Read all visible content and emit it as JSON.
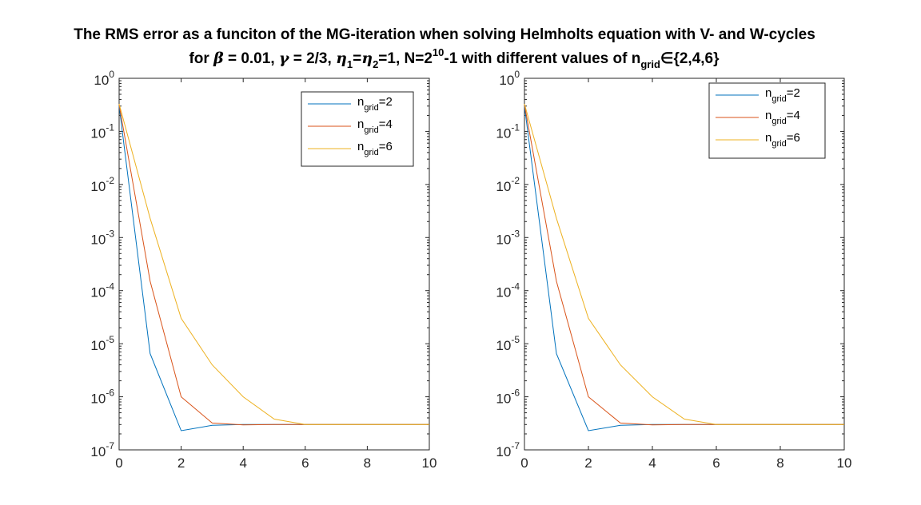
{
  "chart_data": {
    "title_line1": "The RMS error as a funciton of the MG-iteration when solving Helmholts equation with V- and W-cycles",
    "title_line2": {
      "p1": "for ",
      "beta": "β",
      "p2": " = 0.01, ",
      "gamma": "γ",
      "p3": " = 2/3, ",
      "eta": "η",
      "sub1": "1",
      "p4": "=",
      "sub2": "2",
      "p5": "=1, N=2",
      "sup": "10",
      "p6": "-1 with different values of n",
      "subgrid": "grid",
      "p7": "∈{2,4,6}"
    },
    "colors": [
      "#0072BD",
      "#D95319",
      "#EDB120"
    ],
    "panels": [
      {
        "type": "line",
        "yscale": "log",
        "xlim": [
          0,
          10
        ],
        "ylim_exp": [
          -7,
          0
        ],
        "xticks": [
          0,
          2,
          4,
          6,
          8,
          10
        ],
        "yticks": [
          {
            "base": "10",
            "exp": "0"
          },
          {
            "base": "10",
            "exp": "-1"
          },
          {
            "base": "10",
            "exp": "-2"
          },
          {
            "base": "10",
            "exp": "-3"
          },
          {
            "base": "10",
            "exp": "-4"
          },
          {
            "base": "10",
            "exp": "-5"
          },
          {
            "base": "10",
            "exp": "-6"
          },
          {
            "base": "10",
            "exp": "-7"
          }
        ],
        "legend": "top-right",
        "series": [
          {
            "label": {
              "n": "n",
              "sub": "grid",
              "val": "=2"
            },
            "x": [
              0,
              1,
              2,
              3,
              4,
              5,
              6,
              7,
              8,
              9,
              10
            ],
            "y": [
              0.3,
              6.5e-06,
              2.3e-07,
              2.9e-07,
              3e-07,
              3e-07,
              3e-07,
              3e-07,
              3e-07,
              3e-07,
              3e-07
            ]
          },
          {
            "label": {
              "n": "n",
              "sub": "grid",
              "val": "=4"
            },
            "x": [
              0,
              1,
              2,
              3,
              4,
              5,
              6,
              7,
              8,
              9,
              10
            ],
            "y": [
              0.32,
              0.00015,
              1e-06,
              3.2e-07,
              2.95e-07,
              3e-07,
              3e-07,
              3e-07,
              3e-07,
              3e-07,
              3e-07
            ]
          },
          {
            "label": {
              "n": "n",
              "sub": "grid",
              "val": "=6"
            },
            "x": [
              0,
              1,
              2,
              3,
              4,
              5,
              6,
              7,
              8,
              9,
              10
            ],
            "y": [
              0.33,
              0.0023,
              3e-05,
              4e-06,
              1e-06,
              3.8e-07,
              3e-07,
              3e-07,
              3e-07,
              3e-07,
              3e-07
            ]
          }
        ]
      },
      {
        "type": "line",
        "yscale": "log",
        "xlim": [
          0,
          10
        ],
        "ylim_exp": [
          -7,
          0
        ],
        "xticks": [
          0,
          2,
          4,
          6,
          8,
          10
        ],
        "yticks": [
          {
            "base": "10",
            "exp": "0"
          },
          {
            "base": "10",
            "exp": "-1"
          },
          {
            "base": "10",
            "exp": "-2"
          },
          {
            "base": "10",
            "exp": "-3"
          },
          {
            "base": "10",
            "exp": "-4"
          },
          {
            "base": "10",
            "exp": "-5"
          },
          {
            "base": "10",
            "exp": "-6"
          },
          {
            "base": "10",
            "exp": "-7"
          }
        ],
        "legend": "top-right",
        "series": [
          {
            "label": {
              "n": "n",
              "sub": "grid",
              "val": "=2"
            },
            "x": [
              0,
              1,
              2,
              3,
              4,
              5,
              6,
              7,
              8,
              9,
              10
            ],
            "y": [
              0.3,
              6.5e-06,
              2.3e-07,
              2.9e-07,
              3e-07,
              3e-07,
              3e-07,
              3e-07,
              3e-07,
              3e-07,
              3e-07
            ]
          },
          {
            "label": {
              "n": "n",
              "sub": "grid",
              "val": "=4"
            },
            "x": [
              0,
              1,
              2,
              3,
              4,
              5,
              6,
              7,
              8,
              9,
              10
            ],
            "y": [
              0.32,
              0.00015,
              1e-06,
              3.2e-07,
              2.95e-07,
              3e-07,
              3e-07,
              3e-07,
              3e-07,
              3e-07,
              3e-07
            ]
          },
          {
            "label": {
              "n": "n",
              "sub": "grid",
              "val": "=6"
            },
            "x": [
              0,
              1,
              2,
              3,
              4,
              5,
              6,
              7,
              8,
              9,
              10
            ],
            "y": [
              0.33,
              0.0023,
              3e-05,
              4e-06,
              1e-06,
              3.8e-07,
              3e-07,
              3e-07,
              3e-07,
              3e-07,
              3e-07
            ]
          }
        ]
      }
    ]
  }
}
